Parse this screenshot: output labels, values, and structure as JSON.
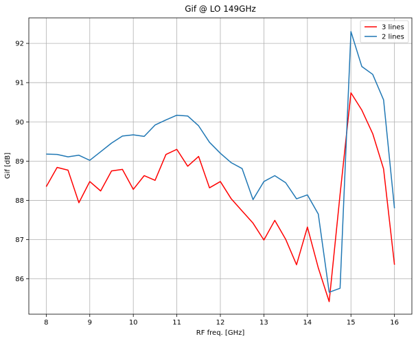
{
  "chart_data": {
    "type": "line",
    "title": "Gif @ LO 149GHz",
    "xlabel": "RF freq. [GHz]",
    "ylabel": "Gif [dB]",
    "xlim": [
      7.6,
      16.4
    ],
    "ylim": [
      85.1,
      92.65
    ],
    "xticks": [
      8,
      9,
      10,
      11,
      12,
      13,
      14,
      15,
      16
    ],
    "yticks": [
      86,
      87,
      88,
      89,
      90,
      91,
      92
    ],
    "grid": true,
    "legend_position": "top-right",
    "x": [
      8.0,
      8.25,
      8.5,
      8.75,
      9.0,
      9.25,
      9.5,
      9.75,
      10.0,
      10.25,
      10.5,
      10.75,
      11.0,
      11.25,
      11.5,
      11.75,
      12.0,
      12.25,
      12.5,
      12.75,
      13.0,
      13.25,
      13.5,
      13.75,
      14.0,
      14.25,
      14.5,
      14.75,
      15.0,
      15.25,
      15.5,
      15.75,
      16.0
    ],
    "series": [
      {
        "name": "3 lines",
        "color": "#ff0000",
        "values": [
          88.35,
          88.84,
          88.77,
          87.94,
          88.48,
          88.24,
          88.75,
          88.79,
          88.28,
          88.63,
          88.51,
          89.17,
          89.3,
          88.87,
          89.12,
          88.32,
          88.48,
          88.04,
          87.73,
          87.42,
          86.99,
          87.49,
          87.01,
          86.36,
          87.32,
          86.28,
          85.42,
          88.15,
          90.74,
          90.3,
          89.7,
          88.8,
          86.36
        ]
      },
      {
        "name": "2 lines",
        "color": "#1f77b4",
        "values": [
          89.18,
          89.17,
          89.11,
          89.15,
          89.02,
          89.24,
          89.46,
          89.64,
          89.67,
          89.63,
          89.92,
          90.05,
          90.17,
          90.15,
          89.9,
          89.48,
          89.2,
          88.96,
          88.81,
          88.02,
          88.48,
          88.63,
          88.45,
          88.04,
          88.14,
          87.65,
          85.66,
          85.76,
          92.3,
          91.41,
          91.21,
          90.56,
          87.8
        ]
      }
    ]
  }
}
